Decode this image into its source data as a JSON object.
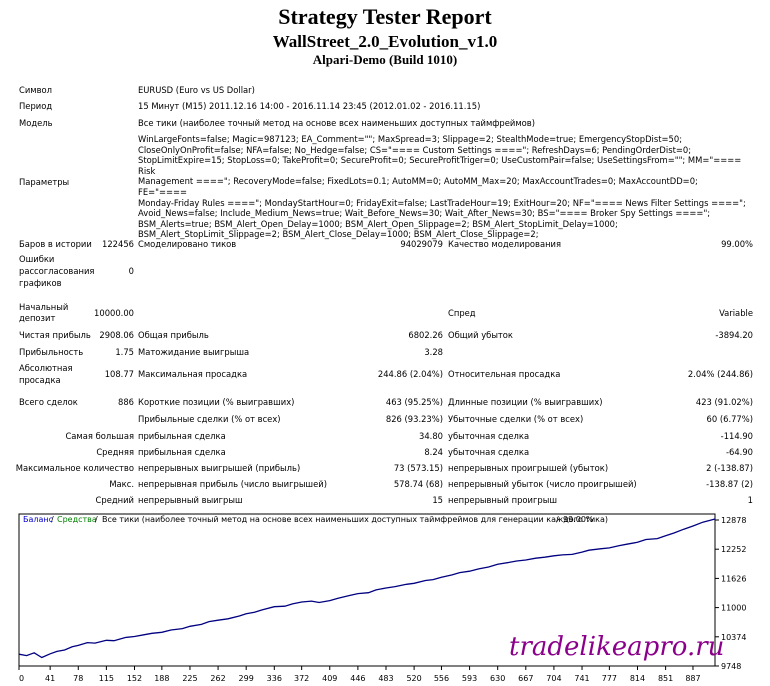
{
  "header": {
    "title": "Strategy Tester Report",
    "ea_name": "WallStreet_2.0_Evolution_v1.0",
    "server": "Alpari-Demo (Build 1010)"
  },
  "rows": {
    "symbol": {
      "label": "Символ",
      "value": "EURUSD (Euro vs US Dollar)"
    },
    "period": {
      "label": "Период",
      "value": "15 Минут (M15) 2011.12.16 14:00 - 2016.11.14 23:45 (2012.01.02 - 2016.11.15)"
    },
    "model": {
      "label": "Модель",
      "value": "Все тики (наиболее точный метод на основе всех наименьших доступных таймфреймов)"
    },
    "params": {
      "label": "Параметры",
      "lines": [
        "WinLargeFonts=false; Magic=987123; EA_Comment=\"\"; MaxSpread=3; Slippage=2; StealthMode=true; EmergencyStopDist=50;",
        "CloseOnlyOnProfit=false; NFA=false; No_Hedge=false; CS=\"==== Custom Settings ====\"; RefreshDays=6; PendingOrderDist=0;",
        "StopLimitExpire=15; StopLoss=0; TakeProfit=0; SecureProfit=0; SecureProfitTriger=0; UseCustomPair=false; UseSettingsFrom=\"\"; MM=\"==== Risk",
        "Management ====\"; RecoveryMode=false; FixedLots=0.1; AutoMM=0; AutoMM_Max=20; MaxAccountTrades=0; MaxAccountDD=0; FE=\"====",
        "Monday-Friday Rules ====\"; MondayStartHour=0; FridayExit=false; LastTradeHour=19; ExitHour=20; NF=\"==== News Filter Settings ====\";",
        "Avoid_News=false; Include_Medium_News=true; Wait_Before_News=30; Wait_After_News=30; BS=\"==== Broker Spy Settings ====\";",
        "BSM_Alerts=true; BSM_Alert_Open_Delay=1000; BSM_Alert_Open_Slippage=2; BSM_Alert_StopLimit_Delay=1000;",
        "BSM_Alert_StopLimit_Slippage=2; BSM_Alert_Close_Delay=1000; BSM_Alert_Close_Slippage=2;"
      ]
    }
  },
  "stats": {
    "bars": {
      "label": "Баров в истории",
      "value": "122456"
    },
    "ticks": {
      "label": "Смоделировано тиков",
      "value": "94029079"
    },
    "quality": {
      "label": "Качество моделирования",
      "value": "99.00%"
    },
    "errors": {
      "label1": "Ошибки",
      "label2": "рассогласования",
      "label3": "графиков",
      "value": "0"
    },
    "deposit": {
      "label1": "Начальный",
      "label2": "депозит",
      "value": "10000.00"
    },
    "spread": {
      "label": "Спред",
      "value": "Variable"
    },
    "net_profit": {
      "label": "Чистая прибыль",
      "value": "2908.06"
    },
    "gross_profit": {
      "label": "Общая прибыль",
      "value": "6802.26"
    },
    "gross_loss": {
      "label": "Общий убыток",
      "value": "-3894.20"
    },
    "profit_factor": {
      "label": "Прибыльность",
      "value": "1.75"
    },
    "expected_payoff": {
      "label": "Матожидание выигрыша",
      "value": "3.28"
    },
    "abs_dd": {
      "label1": "Абсолютная",
      "label2": "просадка",
      "value": "108.77"
    },
    "max_dd": {
      "label": "Максимальная просадка",
      "value": "244.86 (2.04%)"
    },
    "rel_dd": {
      "label": "Относительная просадка",
      "value": "2.04% (244.86)"
    },
    "total_trades": {
      "label": "Всего сделок",
      "value": "886"
    },
    "short_pos": {
      "label": "Короткие позиции (% выигравших)",
      "value": "463 (95.25%)"
    },
    "long_pos": {
      "label": "Длинные позиции (% выигравших)",
      "value": "423 (91.02%)"
    },
    "profit_trades": {
      "label": "Прибыльные сделки (% от всех)",
      "value": "826 (93.23%)"
    },
    "loss_trades": {
      "label": "Убыточные сделки (% от всех)",
      "value": "60 (6.77%)"
    },
    "largest": {
      "label": "Самая большая",
      "p_label": "прибыльная сделка",
      "p_value": "34.80",
      "l_label": "убыточная сделка",
      "l_value": "-114.90"
    },
    "average": {
      "label": "Средняя",
      "p_label": "прибыльная сделка",
      "p_value": "8.24",
      "l_label": "убыточная сделка",
      "l_value": "-64.90"
    },
    "max_consec": {
      "label": "Максимальное количество",
      "p_label": "непрерывных выигрышей (прибыль)",
      "p_value": "73 (573.15)",
      "l_label": "непрерывных проигрышей (убыток)",
      "l_value": "2 (-138.87)"
    },
    "max_consec_profit": {
      "label": "Макс.",
      "p_label": "непрерывная прибыль (число выигрышей)",
      "p_value": "578.74 (68)",
      "l_label": "непрерывный убыток (число проигрышей)",
      "l_value": "-138.87 (2)"
    },
    "avg_consec": {
      "label": "Средний",
      "p_label": "непрерывный выигрыш",
      "p_value": "15",
      "l_label": "непрерывный проигрыш",
      "l_value": "1"
    }
  },
  "chart_data": {
    "type": "line",
    "legend": {
      "balance": "Баланс",
      "equity": "Средства",
      "desc": "Все тики (наиболее точный метод на основе всех наименьших доступных таймфреймов для генерации каждого тика)",
      "quality": "99.00%"
    },
    "x_ticks": [
      "0",
      "41",
      "78",
      "115",
      "152",
      "188",
      "225",
      "262",
      "299",
      "336",
      "372",
      "409",
      "446",
      "483",
      "520",
      "556",
      "593",
      "630",
      "667",
      "704",
      "741",
      "777",
      "814",
      "851",
      "887"
    ],
    "y_ticks": [
      "12878",
      "12252",
      "11626",
      "11000",
      "10374",
      "9748"
    ],
    "ylim": [
      9748,
      12878
    ],
    "xlim": [
      0,
      916
    ],
    "series": [
      {
        "name": "Баланс",
        "color": "#000080",
        "x": [
          0,
          10,
          20,
          30,
          41,
          50,
          60,
          70,
          78,
          90,
          100,
          115,
          125,
          140,
          152,
          165,
          175,
          188,
          200,
          215,
          225,
          240,
          250,
          262,
          275,
          290,
          299,
          310,
          320,
          336,
          350,
          360,
          372,
          385,
          395,
          409,
          420,
          435,
          446,
          460,
          470,
          483,
          495,
          510,
          520,
          535,
          545,
          556,
          570,
          580,
          593,
          605,
          618,
          630,
          645,
          655,
          667,
          680,
          692,
          704,
          715,
          728,
          741,
          750,
          765,
          777,
          790,
          800,
          814,
          825,
          840,
          851,
          862,
          875,
          887,
          900,
          916
        ],
        "y": [
          10000,
          9970,
          10030,
          9930,
          10010,
          10060,
          10090,
          10160,
          10190,
          10250,
          10240,
          10300,
          10290,
          10360,
          10380,
          10420,
          10450,
          10470,
          10520,
          10550,
          10600,
          10640,
          10700,
          10730,
          10760,
          10820,
          10870,
          10900,
          10950,
          11020,
          11030,
          11080,
          11120,
          11140,
          11110,
          11150,
          11200,
          11260,
          11300,
          11320,
          11380,
          11420,
          11450,
          11500,
          11520,
          11580,
          11600,
          11650,
          11700,
          11750,
          11780,
          11830,
          11870,
          11930,
          11970,
          12000,
          12020,
          12060,
          12080,
          12110,
          12130,
          12140,
          12190,
          12230,
          12260,
          12280,
          12330,
          12360,
          12400,
          12460,
          12480,
          12540,
          12600,
          12680,
          12750,
          12830,
          12900
        ]
      }
    ],
    "watermark": "tradelikeapro.ru"
  }
}
